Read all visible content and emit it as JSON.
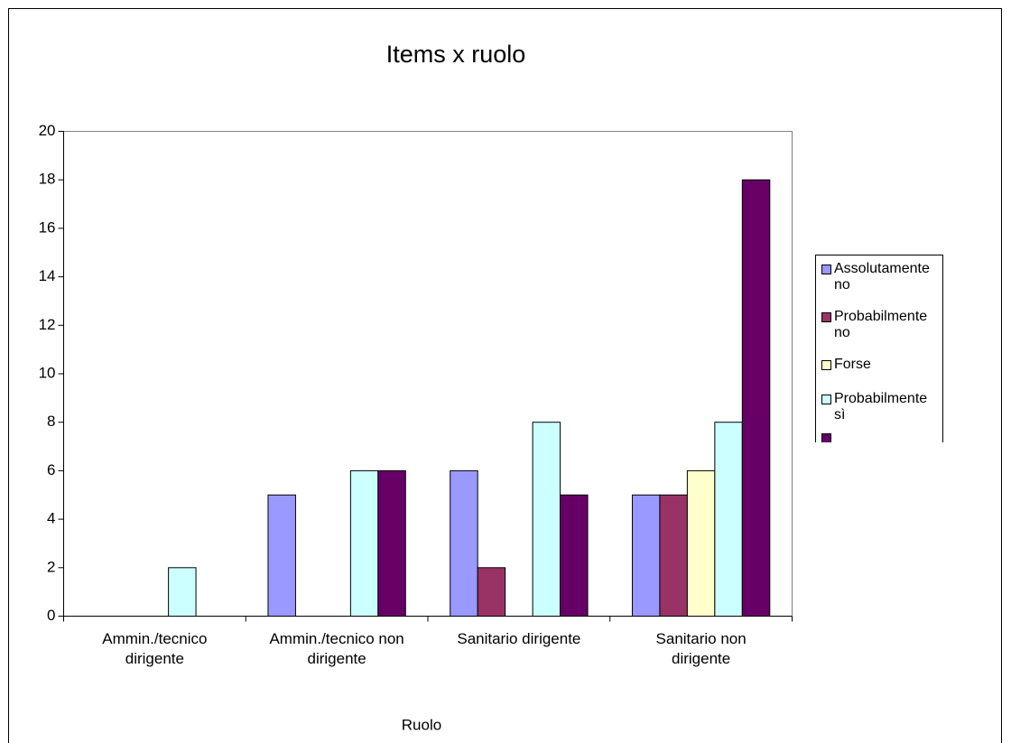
{
  "chart_data": {
    "type": "bar",
    "title": "Items x ruolo",
    "x_label": "Ruolo",
    "categories": [
      "Ammin./tecnico\ndirigente",
      "Ammin./tecnico non\ndirigente",
      "Sanitario dirigente",
      "Sanitario non\ndirigente"
    ],
    "series": [
      {
        "name": "Assolutamente no",
        "color": "#9999ff",
        "values": [
          0,
          5,
          6,
          5
        ]
      },
      {
        "name": "Probabilmente no",
        "color": "#993366",
        "values": [
          0,
          0,
          2,
          5
        ]
      },
      {
        "name": "Forse",
        "color": "#ffffcc",
        "values": [
          0,
          0,
          0,
          6
        ]
      },
      {
        "name": "Probabilmente sì",
        "color": "#ccffff",
        "values": [
          2,
          6,
          8,
          8
        ]
      },
      {
        "name": null,
        "color": "#660066",
        "values": [
          0,
          6,
          5,
          18
        ]
      }
    ],
    "ylim": [
      0,
      20
    ],
    "yticks": [
      0,
      2,
      4,
      6,
      8,
      10,
      12,
      14,
      16,
      18,
      20
    ],
    "grid": false,
    "legend": "right"
  }
}
